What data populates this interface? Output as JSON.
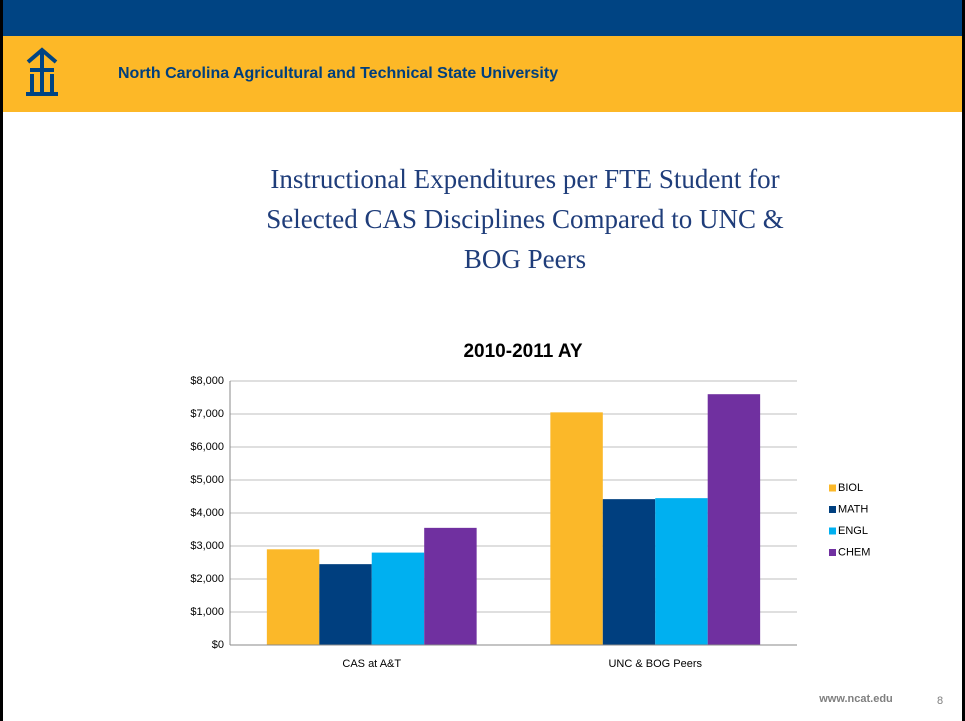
{
  "header": {
    "title": "North Carolina Agricultural and Technical State University"
  },
  "slide": {
    "title_lines": [
      "Instructional Expenditures per FTE Student for",
      "Selected CAS Disciplines Compared to UNC &",
      "BOG Peers"
    ],
    "footer": "www.ncat.edu",
    "page_number": "8"
  },
  "chart_data": {
    "type": "bar",
    "title": "2010-2011 AY",
    "categories": [
      "CAS at A&T",
      "UNC & BOG Peers"
    ],
    "series": [
      {
        "name": "BIOL",
        "color": "#fbb829",
        "values": [
          2900,
          7050
        ]
      },
      {
        "name": "MATH",
        "color": "#003f7f",
        "values": [
          2450,
          4420
        ]
      },
      {
        "name": "ENGL",
        "color": "#00b0f0",
        "values": [
          2800,
          4450
        ]
      },
      {
        "name": "CHEM",
        "color": "#7030a0",
        "values": [
          3550,
          7600
        ]
      }
    ],
    "ylim": [
      0,
      8000
    ],
    "yticks": [
      {
        "value": 0,
        "label": "$0"
      },
      {
        "value": 1000,
        "label": "$1,000"
      },
      {
        "value": 2000,
        "label": "$2,000"
      },
      {
        "value": 3000,
        "label": "$3,000"
      },
      {
        "value": 4000,
        "label": "$4,000"
      },
      {
        "value": 5000,
        "label": "$5,000"
      },
      {
        "value": 6000,
        "label": "$6,000"
      },
      {
        "value": 7000,
        "label": "$7,000"
      },
      {
        "value": 8000,
        "label": "$8,000"
      }
    ],
    "grid": true,
    "legend": "right"
  }
}
